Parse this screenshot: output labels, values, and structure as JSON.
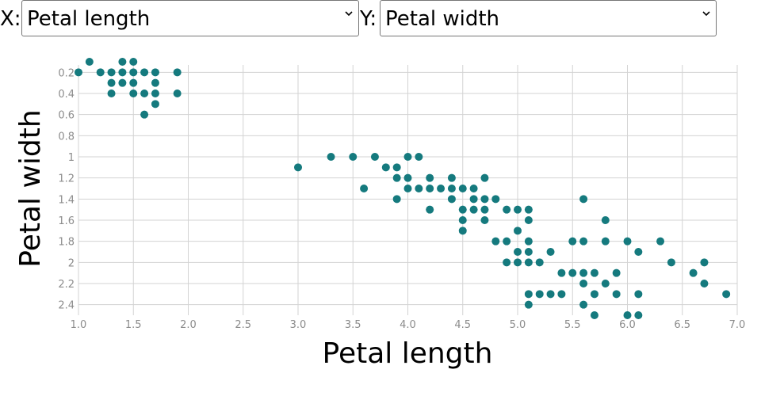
{
  "controls": {
    "x_label": "X:",
    "y_label": "Y:",
    "x_selected": "Petal length",
    "y_selected": "Petal width"
  },
  "colors": {
    "point": "#157A7E",
    "grid": "#d3d3d3",
    "tick_text": "#8c8c8c"
  },
  "chart_data": {
    "type": "scatter",
    "xlabel": "Petal length",
    "ylabel": "Petal width",
    "xlim": [
      1.0,
      7.0
    ],
    "ylim": [
      0.1,
      2.5
    ],
    "y_inverted": true,
    "x_ticks": [
      "1.0",
      "1.5",
      "2.0",
      "2.5",
      "3.0",
      "3.5",
      "4.0",
      "4.5",
      "5.0",
      "5.5",
      "6.0",
      "6.5",
      "7.0"
    ],
    "y_ticks": [
      "0.2",
      "0.4",
      "0.6",
      "0.8",
      "1",
      "1.2",
      "1.4",
      "1.6",
      "1.8",
      "2",
      "2.2",
      "2.4"
    ],
    "grid": true,
    "points": [
      [
        1.0,
        0.2
      ],
      [
        1.1,
        0.1
      ],
      [
        1.2,
        0.2
      ],
      [
        1.3,
        0.2
      ],
      [
        1.3,
        0.3
      ],
      [
        1.3,
        0.4
      ],
      [
        1.4,
        0.1
      ],
      [
        1.4,
        0.2
      ],
      [
        1.4,
        0.3
      ],
      [
        1.5,
        0.1
      ],
      [
        1.5,
        0.2
      ],
      [
        1.5,
        0.3
      ],
      [
        1.5,
        0.4
      ],
      [
        1.6,
        0.2
      ],
      [
        1.6,
        0.4
      ],
      [
        1.6,
        0.6
      ],
      [
        1.7,
        0.2
      ],
      [
        1.7,
        0.3
      ],
      [
        1.7,
        0.4
      ],
      [
        1.7,
        0.5
      ],
      [
        1.9,
        0.2
      ],
      [
        1.9,
        0.4
      ],
      [
        3.0,
        1.1
      ],
      [
        3.3,
        1.0
      ],
      [
        3.5,
        1.0
      ],
      [
        3.6,
        1.3
      ],
      [
        3.7,
        1.0
      ],
      [
        3.8,
        1.1
      ],
      [
        3.9,
        1.1
      ],
      [
        3.9,
        1.2
      ],
      [
        3.9,
        1.4
      ],
      [
        4.0,
        1.0
      ],
      [
        4.0,
        1.2
      ],
      [
        4.0,
        1.3
      ],
      [
        4.1,
        1.0
      ],
      [
        4.1,
        1.3
      ],
      [
        4.2,
        1.2
      ],
      [
        4.2,
        1.3
      ],
      [
        4.2,
        1.5
      ],
      [
        4.3,
        1.3
      ],
      [
        4.4,
        1.2
      ],
      [
        4.4,
        1.3
      ],
      [
        4.4,
        1.4
      ],
      [
        4.5,
        1.3
      ],
      [
        4.5,
        1.5
      ],
      [
        4.5,
        1.6
      ],
      [
        4.5,
        1.7
      ],
      [
        4.6,
        1.3
      ],
      [
        4.6,
        1.4
      ],
      [
        4.6,
        1.5
      ],
      [
        4.7,
        1.2
      ],
      [
        4.7,
        1.4
      ],
      [
        4.7,
        1.5
      ],
      [
        4.7,
        1.6
      ],
      [
        4.8,
        1.4
      ],
      [
        4.8,
        1.8
      ],
      [
        4.9,
        1.5
      ],
      [
        4.9,
        1.8
      ],
      [
        4.9,
        2.0
      ],
      [
        5.0,
        1.5
      ],
      [
        5.0,
        1.7
      ],
      [
        5.0,
        1.9
      ],
      [
        5.0,
        2.0
      ],
      [
        5.1,
        1.5
      ],
      [
        5.1,
        1.6
      ],
      [
        5.1,
        1.8
      ],
      [
        5.1,
        1.9
      ],
      [
        5.1,
        2.0
      ],
      [
        5.1,
        2.3
      ],
      [
        5.1,
        2.4
      ],
      [
        5.2,
        2.0
      ],
      [
        5.2,
        2.3
      ],
      [
        5.3,
        1.9
      ],
      [
        5.3,
        2.3
      ],
      [
        5.4,
        2.1
      ],
      [
        5.4,
        2.3
      ],
      [
        5.5,
        1.8
      ],
      [
        5.5,
        2.1
      ],
      [
        5.6,
        1.4
      ],
      [
        5.6,
        1.8
      ],
      [
        5.6,
        2.1
      ],
      [
        5.6,
        2.2
      ],
      [
        5.6,
        2.4
      ],
      [
        5.7,
        2.1
      ],
      [
        5.7,
        2.3
      ],
      [
        5.7,
        2.5
      ],
      [
        5.8,
        1.6
      ],
      [
        5.8,
        1.8
      ],
      [
        5.8,
        2.2
      ],
      [
        5.9,
        2.1
      ],
      [
        5.9,
        2.3
      ],
      [
        6.0,
        1.8
      ],
      [
        6.0,
        2.5
      ],
      [
        6.1,
        1.9
      ],
      [
        6.1,
        2.3
      ],
      [
        6.1,
        2.5
      ],
      [
        6.3,
        1.8
      ],
      [
        6.4,
        2.0
      ],
      [
        6.6,
        2.1
      ],
      [
        6.7,
        2.0
      ],
      [
        6.7,
        2.2
      ],
      [
        6.9,
        2.3
      ]
    ]
  }
}
